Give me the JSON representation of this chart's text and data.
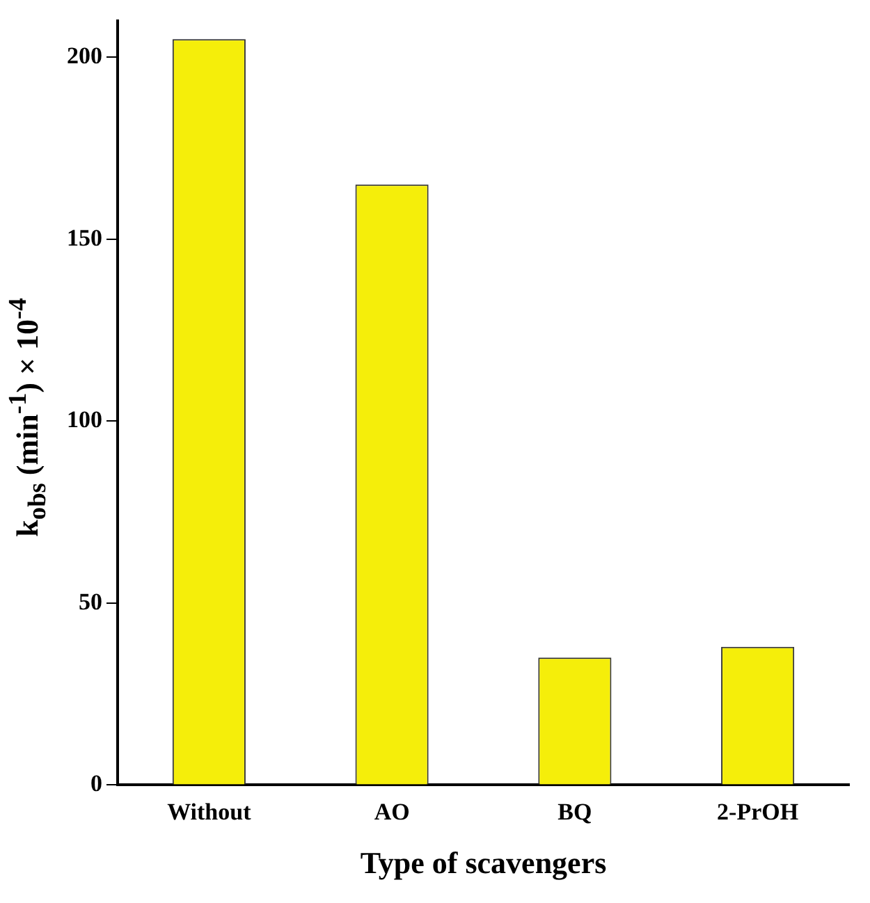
{
  "chart_data": {
    "type": "bar",
    "xlabel": "Type of scavengers",
    "ylabel": "k$_{obs}$ (min$^{-1}$) × 10$^{-4}$",
    "categories": [
      "Without",
      "AO",
      "BQ",
      "2-PrOH"
    ],
    "values": [
      205,
      165,
      35,
      38
    ],
    "color": "#f5ee0a",
    "ylim": [
      0,
      210
    ],
    "yticks": [
      0,
      50,
      100,
      150,
      200
    ],
    "grid": false,
    "legend": false
  }
}
